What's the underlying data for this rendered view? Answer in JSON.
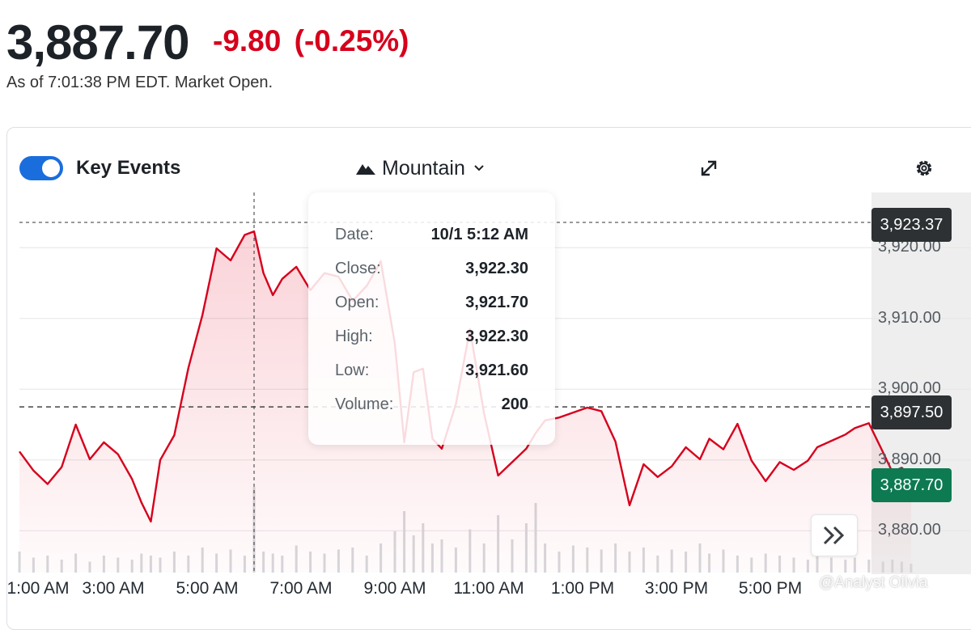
{
  "quote": {
    "price": "3,887.70",
    "change": "-9.80",
    "change_pct": "(-0.25%)",
    "as_of": "As of 7:01:38 PM EDT. Market Open."
  },
  "toolbar": {
    "key_events_label": "Key Events",
    "key_events_on": true,
    "chart_type_label": "Mountain"
  },
  "tooltip": {
    "rows": [
      {
        "key": "Date:",
        "value": "10/1 5:12 AM"
      },
      {
        "key": "Close:",
        "value": "3,922.30"
      },
      {
        "key": "Open:",
        "value": "3,921.70"
      },
      {
        "key": "High:",
        "value": "3,922.30"
      },
      {
        "key": "Low:",
        "value": "3,921.60"
      },
      {
        "key": "Volume:",
        "value": "200"
      }
    ]
  },
  "price_tags": {
    "hover": "3,923.37",
    "previous_close": "3,897.50",
    "last": "3,887.70"
  },
  "watermark": "@Analyst Olivia",
  "colors": {
    "line": "#d6001c",
    "accent_toggle": "#1a6ddd",
    "last_tag": "#0d7a52",
    "dark_tag": "#2d3134",
    "negative_text": "#d6001c"
  },
  "chart_data": {
    "type": "area",
    "x_tick_labels": [
      "1:00 AM",
      "3:00 AM",
      "5:00 AM",
      "7:00 AM",
      "9:00 AM",
      "11:00 AM",
      "1:00 PM",
      "3:00 PM",
      "5:00 PM"
    ],
    "y_tick_labels": [
      "3,920.00",
      "3,910.00",
      "3,900.00",
      "3,890.00",
      "3,880.00"
    ],
    "y_ticks": [
      3920,
      3910,
      3900,
      3890,
      3880
    ],
    "ylim": [
      3875,
      3927
    ],
    "x_hours": [
      0.0,
      0.3,
      0.6,
      0.9,
      1.2,
      1.5,
      1.8,
      2.1,
      2.4,
      2.6,
      2.8,
      3.0,
      3.3,
      3.6,
      3.9,
      4.2,
      4.5,
      4.8,
      5.0,
      5.2,
      5.4,
      5.6,
      5.9,
      6.2,
      6.5,
      6.8,
      7.1,
      7.4,
      7.7,
      8.0,
      8.2,
      8.4,
      8.6,
      8.8,
      9.0,
      9.3,
      9.6,
      9.9,
      10.2,
      10.5,
      10.8,
      11.0,
      11.2,
      11.5,
      11.8,
      12.1,
      12.4,
      12.7,
      13.0,
      13.3,
      13.6,
      13.9,
      14.2,
      14.5,
      14.7,
      15.0,
      15.3,
      15.6,
      15.9,
      16.2,
      16.5,
      16.8,
      17.0,
      17.3,
      17.6,
      17.8,
      18.1,
      18.4,
      18.6,
      18.8,
      19.0
    ],
    "close": [
      3891.2,
      3888.5,
      3886.6,
      3889.0,
      3895.0,
      3890.1,
      3892.5,
      3890.8,
      3887.3,
      3884.0,
      3881.3,
      3890.0,
      3893.5,
      3903.0,
      3910.5,
      3919.9,
      3918.2,
      3921.8,
      3922.3,
      3916.4,
      3913.3,
      3915.6,
      3917.3,
      3914.0,
      3916.4,
      3915.9,
      3912.5,
      3914.6,
      3918.1,
      3906.4,
      3892.5,
      3902.4,
      3902.9,
      3893.0,
      3891.6,
      3897.9,
      3908.5,
      3896.6,
      3887.8,
      3889.7,
      3891.6,
      3893.8,
      3895.6,
      3896.0,
      3896.7,
      3897.4,
      3896.9,
      3892.6,
      3883.6,
      3889.4,
      3887.6,
      3889.1,
      3891.8,
      3890.1,
      3893.0,
      3891.5,
      3895.1,
      3889.9,
      3887.0,
      3889.7,
      3888.6,
      3889.9,
      3891.8,
      3892.7,
      3893.6,
      3894.5,
      3895.2,
      3891.1,
      3888.3,
      3888.9,
      3887.7
    ],
    "volume": [
      40,
      25,
      30,
      20,
      35,
      15,
      30,
      25,
      20,
      35,
      30,
      25,
      40,
      30,
      50,
      35,
      45,
      30,
      200,
      40,
      35,
      30,
      55,
      40,
      35,
      45,
      50,
      30,
      60,
      90,
      140,
      80,
      110,
      60,
      70,
      50,
      95,
      60,
      130,
      70,
      110,
      160,
      60,
      40,
      55,
      50,
      45,
      60,
      40,
      50,
      30,
      45,
      40,
      60,
      35,
      45,
      30,
      25,
      35,
      30,
      25,
      20,
      30,
      25,
      20,
      25,
      20,
      15,
      20,
      15,
      10
    ],
    "previous_close": 3897.5,
    "last": 3887.7,
    "hover_point": {
      "x_hour": 5.0,
      "close": 3922.3
    }
  }
}
